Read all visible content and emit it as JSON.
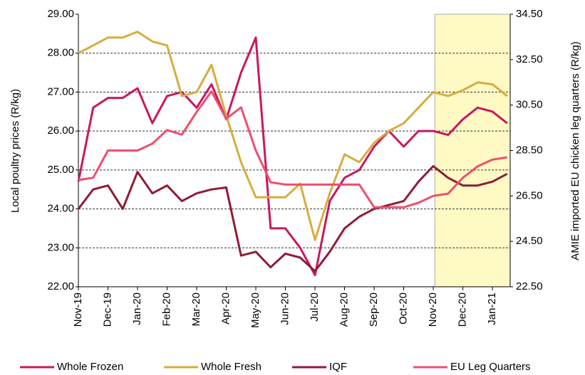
{
  "chart_data": {
    "type": "line",
    "y_label": "Local poultry prices (R/kg)",
    "y2_label": "AMIE imported EU chicken leg quarters (R/kg)",
    "x": [
      0,
      0.5,
      1,
      1.5,
      2,
      2.5,
      3,
      3.5,
      4,
      4.5,
      5,
      5.5,
      6,
      6.5,
      7,
      7.5,
      8,
      8.5,
      9,
      9.5,
      10,
      10.5,
      11,
      11.5,
      12,
      12.5,
      13,
      13.5,
      14,
      14.5
    ],
    "xlim": [
      0,
      14.6
    ],
    "xticks": [
      {
        "value": 0,
        "label": "Nov-19"
      },
      {
        "value": 1,
        "label": "Dec-19"
      },
      {
        "value": 2,
        "label": "Jan-20"
      },
      {
        "value": 3,
        "label": "Feb-20"
      },
      {
        "value": 4,
        "label": "Mar-20"
      },
      {
        "value": 5,
        "label": "Apr-20"
      },
      {
        "value": 6,
        "label": "May-20"
      },
      {
        "value": 7,
        "label": "Jun-20"
      },
      {
        "value": 8,
        "label": "Jul-20"
      },
      {
        "value": 9,
        "label": "Aug-20"
      },
      {
        "value": 10,
        "label": "Sep-20"
      },
      {
        "value": 11,
        "label": "Oct-20"
      },
      {
        "value": 12,
        "label": "Nov-20"
      },
      {
        "value": 13,
        "label": "Dec-20"
      },
      {
        "value": 14,
        "label": "Jan-21"
      }
    ],
    "ylim": [
      22,
      29
    ],
    "yticks": [
      {
        "value": 22,
        "label": "22.00"
      },
      {
        "value": 23,
        "label": "23.00"
      },
      {
        "value": 24,
        "label": "24.00"
      },
      {
        "value": 25,
        "label": "25.00"
      },
      {
        "value": 26,
        "label": "26.00"
      },
      {
        "value": 27,
        "label": "27.00"
      },
      {
        "value": 28,
        "label": "28.00"
      },
      {
        "value": 29,
        "label": "29.00"
      }
    ],
    "y2lim": [
      22.5,
      34.5
    ],
    "y2ticks": [
      {
        "value": 22.5,
        "label": "22.50"
      },
      {
        "value": 24.5,
        "label": "24.50"
      },
      {
        "value": 26.5,
        "label": "26.50"
      },
      {
        "value": 28.5,
        "label": "28.50"
      },
      {
        "value": 30.5,
        "label": "30.50"
      },
      {
        "value": 32.5,
        "label": "32.50"
      },
      {
        "value": 34.5,
        "label": "34.50"
      }
    ],
    "grid": true,
    "shaded_region": {
      "from": 12.05,
      "to": 14.6,
      "color": "#fff9c4"
    },
    "legend": "bottom",
    "series": [
      {
        "name": "Whole Frozen",
        "color": "#c8185e",
        "values": [
          24.7,
          26.6,
          26.85,
          26.85,
          27.1,
          26.2,
          26.9,
          27.0,
          26.6,
          27.2,
          26.3,
          27.5,
          28.4,
          23.5,
          23.5,
          23.0,
          22.3,
          24.2,
          24.8,
          25.0,
          25.6,
          26.0,
          25.6,
          26.0,
          26.0,
          25.9,
          26.3,
          26.6,
          26.5,
          26.2
        ]
      },
      {
        "name": "Whole Fresh",
        "color": "#d6ad3e",
        "values": [
          28.0,
          28.2,
          28.4,
          28.4,
          28.55,
          28.3,
          28.2,
          26.9,
          27.0,
          27.7,
          26.4,
          25.2,
          24.3,
          24.3,
          24.3,
          24.65,
          23.2,
          24.4,
          25.4,
          25.2,
          25.7,
          26.0,
          26.2,
          26.6,
          27.0,
          26.9,
          27.05,
          27.25,
          27.2,
          26.9
        ]
      },
      {
        "name": "IQF",
        "color": "#8e1c36",
        "values": [
          24.0,
          24.5,
          24.6,
          24.0,
          24.95,
          24.4,
          24.6,
          24.2,
          24.4,
          24.5,
          24.55,
          22.8,
          22.9,
          22.5,
          22.85,
          22.75,
          22.4,
          22.9,
          23.5,
          23.8,
          24.0,
          24.1,
          24.2,
          24.7,
          25.1,
          24.8,
          24.6,
          24.6,
          24.7,
          24.9
        ]
      },
      {
        "name": "EU Leg Quarters",
        "color": "#f04e6e",
        "axis": "y2",
        "values": [
          27.2,
          27.3,
          28.5,
          28.5,
          28.5,
          28.8,
          29.4,
          29.2,
          30.2,
          31.1,
          29.9,
          30.4,
          28.5,
          27.1,
          27.0,
          27.0,
          27.0,
          27.0,
          27.0,
          27.0,
          26.0,
          26.0,
          26.0,
          26.2,
          26.5,
          26.6,
          27.3,
          27.8,
          28.1,
          28.2
        ]
      }
    ]
  }
}
